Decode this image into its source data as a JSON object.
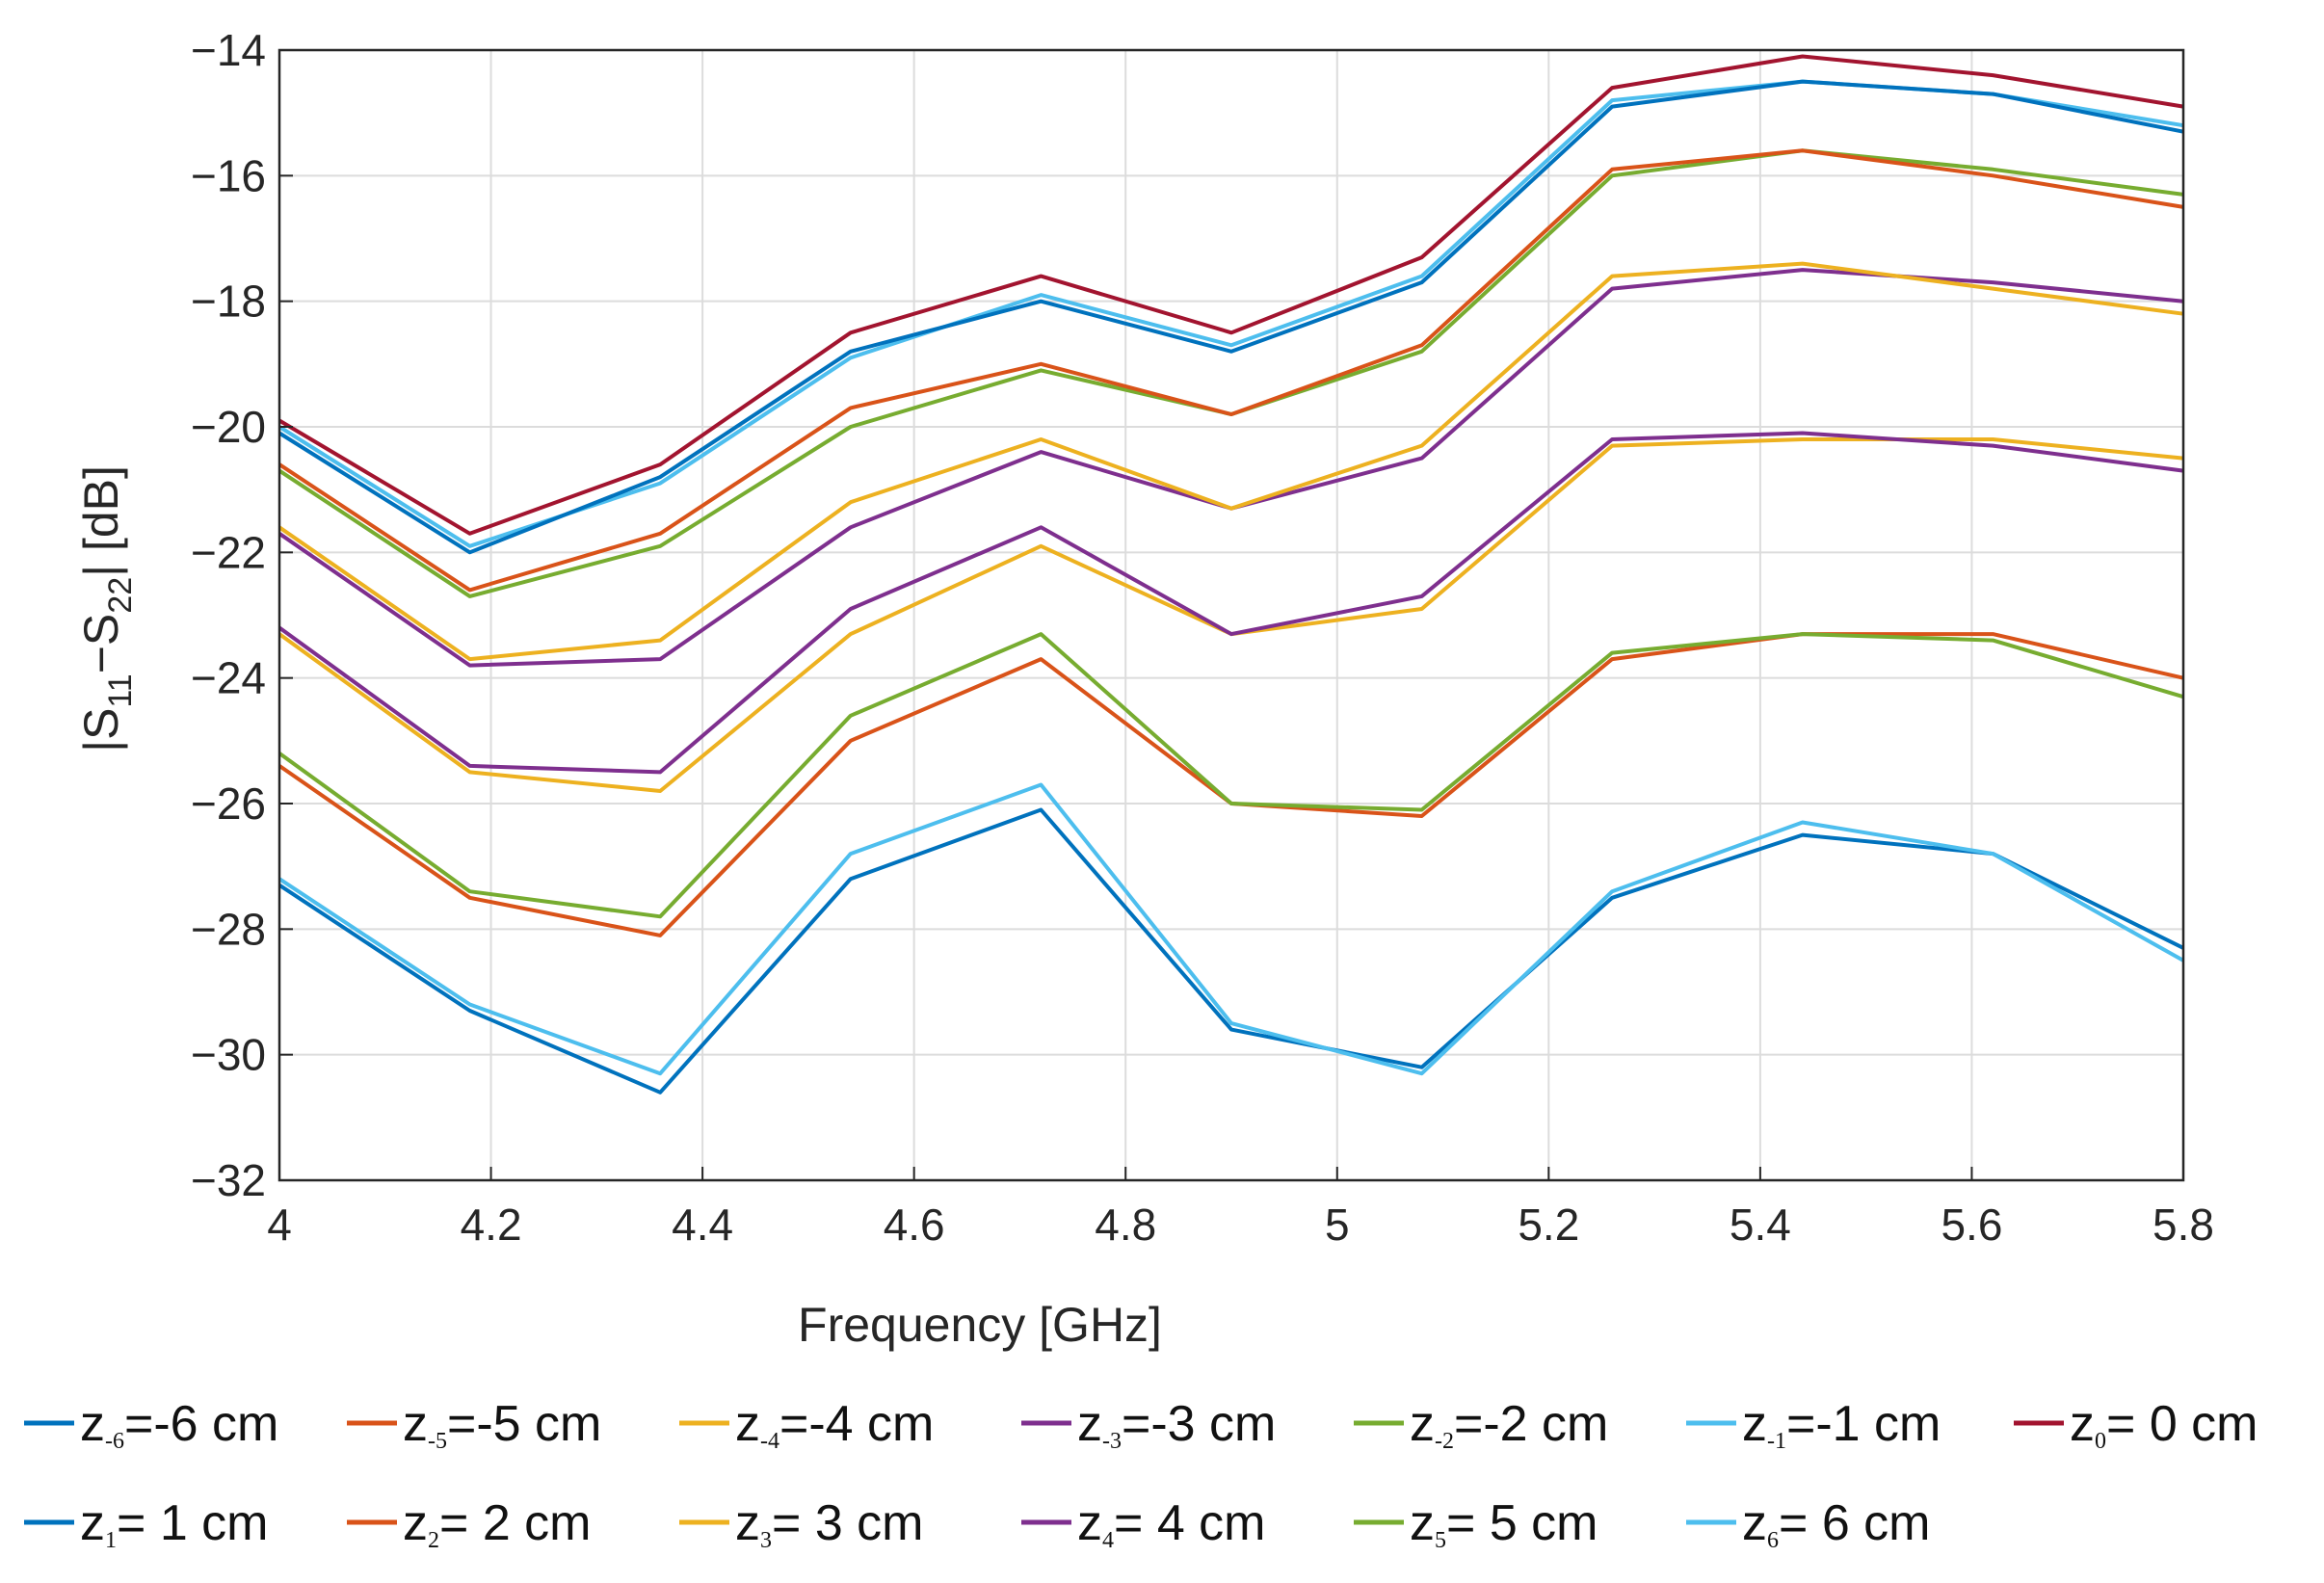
{
  "chart_data": {
    "type": "line",
    "title": "",
    "xlabel": "Frequency [GHz]",
    "ylabel": {
      "pre": "|S",
      "sub1": "11",
      "mid": "−S",
      "sub2": "22",
      "post": "| [dB]"
    },
    "xlim": [
      4,
      5.8
    ],
    "ylim": [
      -32,
      -14
    ],
    "grid": true,
    "legend_position": "bottom",
    "x": [
      4,
      4.18,
      4.36,
      4.54,
      4.72,
      4.9,
      5.08,
      5.26,
      5.44,
      5.62,
      5.8
    ],
    "x_ticks": [
      {
        "value": 4,
        "label": "4"
      },
      {
        "value": 4.2,
        "label": "4.2"
      },
      {
        "value": 4.4,
        "label": "4.4"
      },
      {
        "value": 4.6,
        "label": "4.6"
      },
      {
        "value": 4.8,
        "label": "4.8"
      },
      {
        "value": 5,
        "label": "5"
      },
      {
        "value": 5.2,
        "label": "5.2"
      },
      {
        "value": 5.4,
        "label": "5.4"
      },
      {
        "value": 5.6,
        "label": "5.6"
      },
      {
        "value": 5.8,
        "label": "5.8"
      }
    ],
    "y_ticks": [
      {
        "value": -14,
        "label": "−14"
      },
      {
        "value": -16,
        "label": "−16"
      },
      {
        "value": -18,
        "label": "−18"
      },
      {
        "value": -20,
        "label": "−20"
      },
      {
        "value": -22,
        "label": "−22"
      },
      {
        "value": -24,
        "label": "−24"
      },
      {
        "value": -26,
        "label": "−26"
      },
      {
        "value": -28,
        "label": "−28"
      },
      {
        "value": -30,
        "label": "−30"
      },
      {
        "value": -32,
        "label": "−32"
      }
    ],
    "series": [
      {
        "name": "z-6=-6 cm",
        "color": "#0072BD",
        "legend": {
          "pre": "z",
          "sub": "-6",
          "post": "=-6 cm"
        },
        "values": [
          -27.3,
          -29.3,
          -30.6,
          -27.2,
          -26.1,
          -29.6,
          -30.2,
          -27.5,
          -26.5,
          -26.8,
          -28.3
        ]
      },
      {
        "name": "z-5=-5 cm",
        "color": "#D95319",
        "legend": {
          "pre": "z",
          "sub": "-5",
          "post": "=-5 cm"
        },
        "values": [
          -25.4,
          -27.5,
          -28.1,
          -25.0,
          -23.7,
          -26.0,
          -26.2,
          -23.7,
          -23.3,
          -23.3,
          -24.0
        ]
      },
      {
        "name": "z-4=-4 cm",
        "color": "#EDB120",
        "legend": {
          "pre": "z",
          "sub": "-4",
          "post": "=-4 cm"
        },
        "values": [
          -23.3,
          -25.5,
          -25.8,
          -23.3,
          -21.9,
          -23.3,
          -22.9,
          -20.3,
          -20.2,
          -20.2,
          -20.5
        ]
      },
      {
        "name": "z-3=-3 cm",
        "color": "#7E2F8E",
        "legend": {
          "pre": "z",
          "sub": "-3",
          "post": "=-3 cm"
        },
        "values": [
          -21.7,
          -23.8,
          -23.7,
          -21.6,
          -20.4,
          -21.3,
          -20.5,
          -17.8,
          -17.5,
          -17.7,
          -18.0
        ]
      },
      {
        "name": "z-2=-2 cm",
        "color": "#77AC30",
        "legend": {
          "pre": "z",
          "sub": "-2",
          "post": "=-2 cm"
        },
        "values": [
          -20.7,
          -22.7,
          -21.9,
          -20.0,
          -19.1,
          -19.8,
          -18.8,
          -16.0,
          -15.6,
          -15.9,
          -16.3
        ]
      },
      {
        "name": "z-1=-1 cm",
        "color": "#4DBEEE",
        "legend": {
          "pre": "z",
          "sub": "-1",
          "post": "=-1 cm"
        },
        "values": [
          -20.0,
          -21.9,
          -20.9,
          -18.9,
          -17.9,
          -18.7,
          -17.6,
          -14.8,
          -14.5,
          -14.7,
          -15.2
        ]
      },
      {
        "name": "z0= 0 cm",
        "color": "#A2142F",
        "legend": {
          "pre": "z",
          "sub": "0",
          "post": "= 0 cm"
        },
        "values": [
          -19.9,
          -21.7,
          -20.6,
          -18.5,
          -17.6,
          -18.5,
          -17.3,
          -14.6,
          -14.1,
          -14.4,
          -14.9
        ]
      },
      {
        "name": "z1= 1 cm",
        "color": "#0072BD",
        "legend": {
          "pre": "z",
          "sub": "1",
          "post": "= 1 cm"
        },
        "values": [
          -20.1,
          -22.0,
          -20.8,
          -18.8,
          -18.0,
          -18.8,
          -17.7,
          -14.9,
          -14.5,
          -14.7,
          -15.3
        ]
      },
      {
        "name": "z2= 2 cm",
        "color": "#D95319",
        "legend": {
          "pre": "z",
          "sub": "2",
          "post": "= 2 cm"
        },
        "values": [
          -20.6,
          -22.6,
          -21.7,
          -19.7,
          -19.0,
          -19.8,
          -18.7,
          -15.9,
          -15.6,
          -16.0,
          -16.5
        ]
      },
      {
        "name": "z3= 3 cm",
        "color": "#EDB120",
        "legend": {
          "pre": "z",
          "sub": "3",
          "post": "= 3 cm"
        },
        "values": [
          -21.6,
          -23.7,
          -23.4,
          -21.2,
          -20.2,
          -21.3,
          -20.3,
          -17.6,
          -17.4,
          -17.8,
          -18.2
        ]
      },
      {
        "name": "z4= 4 cm",
        "color": "#7E2F8E",
        "legend": {
          "pre": "z",
          "sub": "4",
          "post": "= 4 cm"
        },
        "values": [
          -23.2,
          -25.4,
          -25.5,
          -22.9,
          -21.6,
          -23.3,
          -22.7,
          -20.2,
          -20.1,
          -20.3,
          -20.7
        ]
      },
      {
        "name": "z5= 5 cm",
        "color": "#77AC30",
        "legend": {
          "pre": "z",
          "sub": "5",
          "post": "= 5 cm"
        },
        "values": [
          -25.2,
          -27.4,
          -27.8,
          -24.6,
          -23.3,
          -26.0,
          -26.1,
          -23.6,
          -23.3,
          -23.4,
          -24.3
        ]
      },
      {
        "name": "z6= 6 cm",
        "color": "#4DBEEE",
        "legend": {
          "pre": "z",
          "sub": "6",
          "post": "= 6 cm"
        },
        "values": [
          -27.2,
          -29.2,
          -30.3,
          -26.8,
          -25.7,
          -29.5,
          -30.3,
          -27.4,
          -26.3,
          -26.8,
          -28.5
        ]
      }
    ]
  }
}
